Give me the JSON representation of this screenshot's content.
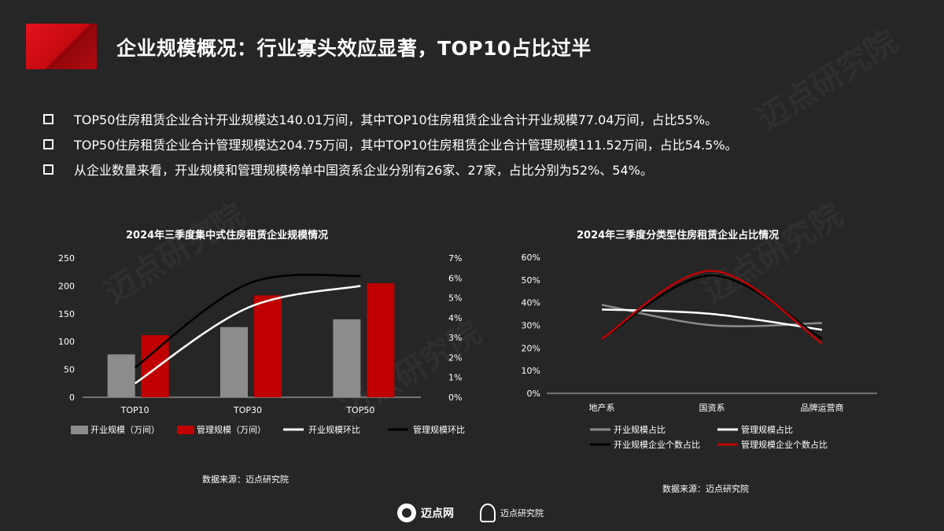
{
  "header": {
    "title": "企业规模概况：行业寡头效应显著，TOP10占比过半"
  },
  "bullets": [
    "TOP50住房租赁企业合计开业规模达140.01万间，其中TOP10住房租赁企业合计开业规模77.04万间，占比55%。",
    "TOP50住房租赁企业合计管理规模达204.75万间，其中TOP10住房租赁企业合计管理规模111.52万间，占比54.5%。",
    "从企业数量来看，开业规模和管理规模榜单中国资系企业分别有26家、27家，占比分别为52%、54%。"
  ],
  "watermark_text": "迈点研究院",
  "chart_data": [
    {
      "type": "bar",
      "title": "2024年三季度集中式住房租赁企业规模情况",
      "categories": [
        "TOP10",
        "TOP30",
        "TOP50"
      ],
      "series": [
        {
          "name": "开业规模（万间）",
          "kind": "bar",
          "axis": "left",
          "values": [
            77.04,
            126,
            140.01
          ],
          "color": "#8c8c8c"
        },
        {
          "name": "管理规模（万间）",
          "kind": "bar",
          "axis": "left",
          "values": [
            111.52,
            183,
            204.75
          ],
          "color": "#c00000"
        },
        {
          "name": "开业规模环比",
          "kind": "line",
          "axis": "right",
          "values": [
            0.7,
            4.5,
            5.6
          ],
          "color": "#ffffff"
        },
        {
          "name": "管理规模环比",
          "kind": "line",
          "axis": "right",
          "values": [
            1.5,
            5.7,
            6.1
          ],
          "color": "#000000"
        }
      ],
      "ylim_left": [
        0,
        250
      ],
      "yticks_left": [
        "0",
        "50",
        "100",
        "150",
        "200",
        "250"
      ],
      "ylim_right": [
        0,
        7
      ],
      "yticks_right": [
        "0%",
        "1%",
        "2%",
        "3%",
        "4%",
        "5%",
        "6%",
        "7%"
      ],
      "legend_position": "bottom"
    },
    {
      "type": "line",
      "title": "2024年三季度分类型住房租赁企业占比情况",
      "categories": [
        "地产系",
        "国资系",
        "品牌运营商"
      ],
      "series": [
        {
          "name": "开业规模占比",
          "values": [
            39,
            30,
            31
          ],
          "color": "#8c8c8c"
        },
        {
          "name": "管理规模占比",
          "values": [
            37,
            35,
            28
          ],
          "color": "#ffffff"
        },
        {
          "name": "开业规模企业个数占比",
          "values": [
            24,
            52,
            24
          ],
          "color": "#000000"
        },
        {
          "name": "管理规模企业个数占比",
          "values": [
            24,
            54,
            22
          ],
          "color": "#c00000"
        }
      ],
      "ylim": [
        0,
        60
      ],
      "yticks": [
        "0%",
        "10%",
        "20%",
        "30%",
        "40%",
        "50%",
        "60%"
      ],
      "legend_position": "bottom"
    }
  ],
  "sources": {
    "left": "数据来源：迈点研究院",
    "right": "数据来源：迈点研究院"
  },
  "footer": {
    "brand1": "迈点网",
    "brand2": "迈点研究院"
  }
}
